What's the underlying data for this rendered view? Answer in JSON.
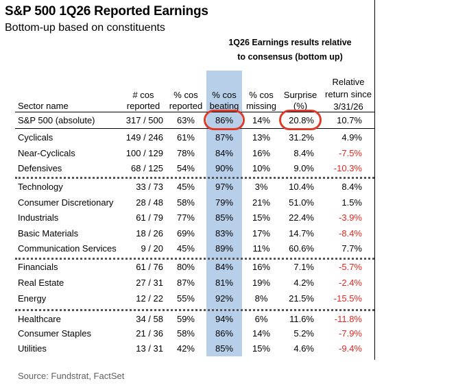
{
  "title": "S&P 500 1Q26 Reported Earnings",
  "subtitle": "Bottom-up based on constituents",
  "group_header": [
    "1Q26 Earnings results relative",
    "to consensus (bottom up)"
  ],
  "columns": {
    "sector": [
      "Sector name"
    ],
    "cos_reported": [
      "# cos",
      "reported"
    ],
    "pct_reported": [
      "% cos",
      "reported"
    ],
    "pct_beating": [
      "% cos",
      "beating"
    ],
    "pct_missing": [
      "% cos",
      "missing"
    ],
    "surprise": [
      "Surprise",
      "(%)"
    ],
    "relative_return": [
      "Relative",
      "return since",
      "3/31/26"
    ]
  },
  "rows": [
    {
      "sector": "S&P 500 (absolute)",
      "cos": "317 / 500",
      "reported": "63%",
      "beating": "86%",
      "missing": "14%",
      "surprise": "20.8%",
      "rel": "10.7%",
      "neg": false
    },
    {
      "sector": "Cyclicals",
      "cos": "149 / 246",
      "reported": "61%",
      "beating": "87%",
      "missing": "13%",
      "surprise": "31.2%",
      "rel": "4.9%",
      "neg": false
    },
    {
      "sector": "Near-Cyclicals",
      "cos": "100 / 129",
      "reported": "78%",
      "beating": "84%",
      "missing": "16%",
      "surprise": "8.4%",
      "rel": "-7.5%",
      "neg": true
    },
    {
      "sector": "Defensives",
      "cos": "68 / 125",
      "reported": "54%",
      "beating": "90%",
      "missing": "10%",
      "surprise": "9.0%",
      "rel": "-10.3%",
      "neg": true
    },
    {
      "sector": "Technology",
      "cos": "33 / 73",
      "reported": "45%",
      "beating": "97%",
      "missing": "3%",
      "surprise": "10.4%",
      "rel": "8.4%",
      "neg": false
    },
    {
      "sector": "Consumer Discretionary",
      "cos": "28 / 48",
      "reported": "58%",
      "beating": "79%",
      "missing": "21%",
      "surprise": "51.0%",
      "rel": "1.5%",
      "neg": false
    },
    {
      "sector": "Industrials",
      "cos": "61 / 79",
      "reported": "77%",
      "beating": "85%",
      "missing": "15%",
      "surprise": "22.4%",
      "rel": "-3.9%",
      "neg": true
    },
    {
      "sector": "Basic Materials",
      "cos": "18 / 26",
      "reported": "69%",
      "beating": "83%",
      "missing": "17%",
      "surprise": "14.7%",
      "rel": "-8.4%",
      "neg": true
    },
    {
      "sector": "Communication Services",
      "cos": "9 / 20",
      "reported": "45%",
      "beating": "89%",
      "missing": "11%",
      "surprise": "60.6%",
      "rel": "7.7%",
      "neg": false
    },
    {
      "sector": "Financials",
      "cos": "61 / 76",
      "reported": "80%",
      "beating": "84%",
      "missing": "16%",
      "surprise": "7.1%",
      "rel": "-5.7%",
      "neg": true
    },
    {
      "sector": "Real Estate",
      "cos": "27 / 31",
      "reported": "87%",
      "beating": "81%",
      "missing": "19%",
      "surprise": "4.2%",
      "rel": "-2.4%",
      "neg": true
    },
    {
      "sector": "Energy",
      "cos": "12 / 22",
      "reported": "55%",
      "beating": "92%",
      "missing": "8%",
      "surprise": "21.5%",
      "rel": "-15.5%",
      "neg": true
    },
    {
      "sector": "Healthcare",
      "cos": "34 / 58",
      "reported": "59%",
      "beating": "94%",
      "missing": "6%",
      "surprise": "11.6%",
      "rel": "-11.8%",
      "neg": true
    },
    {
      "sector": "Consumer Staples",
      "cos": "21 / 36",
      "reported": "58%",
      "beating": "86%",
      "missing": "14%",
      "surprise": "5.2%",
      "rel": "-7.9%",
      "neg": true
    },
    {
      "sector": "Utilities",
      "cos": "13 / 31",
      "reported": "42%",
      "beating": "85%",
      "missing": "15%",
      "surprise": "4.6%",
      "rel": "-9.4%",
      "neg": true
    }
  ],
  "colors": {
    "highlight": "#b8cfe9",
    "negative": "#e8251f",
    "circle": "#e03a28"
  },
  "source": "Source: Fundstrat, FactSet"
}
